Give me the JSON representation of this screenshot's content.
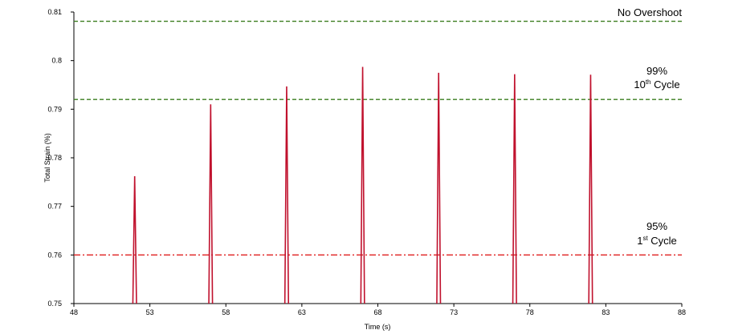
{
  "chart_data": {
    "type": "line",
    "title": "",
    "xlabel": "Time (s)",
    "ylabel": "Total Strain (%)",
    "xlim": [
      48,
      88
    ],
    "ylim": [
      0.75,
      0.81
    ],
    "x_ticks": [
      "48",
      "53",
      "58",
      "63",
      "68",
      "73",
      "78",
      "83",
      "88"
    ],
    "y_ticks": [
      "0.75",
      "0.76",
      "0.77",
      "0.78",
      "0.79",
      "0.8",
      "0.81"
    ],
    "grid": false,
    "colors": {
      "series": "#c0112d",
      "green_ref": "#3a7d1e",
      "red_ref": "#e02020"
    },
    "series": [
      {
        "peaks": [
          {
            "x": 52.0,
            "y": 0.7762
          },
          {
            "x": 57.0,
            "y": 0.791
          },
          {
            "x": 62.0,
            "y": 0.7947
          },
          {
            "x": 67.0,
            "y": 0.7987
          },
          {
            "x": 72.0,
            "y": 0.7975
          },
          {
            "x": 77.0,
            "y": 0.7972
          },
          {
            "x": 82.0,
            "y": 0.7971
          }
        ]
      }
    ],
    "reference_lines": [
      {
        "y": 0.8081,
        "style": "dashed",
        "color": "green",
        "label": "No Overshoot"
      },
      {
        "y": 0.792,
        "style": "dashed",
        "color": "green",
        "label_main": "99%",
        "label_num": "10",
        "label_sup": "th",
        "label_suffix": " Cycle"
      },
      {
        "y": 0.76,
        "style": "dash-dot",
        "color": "red",
        "label_main": "95%",
        "label_num": "1",
        "label_sup": "st",
        "label_suffix": " Cycle"
      }
    ]
  }
}
